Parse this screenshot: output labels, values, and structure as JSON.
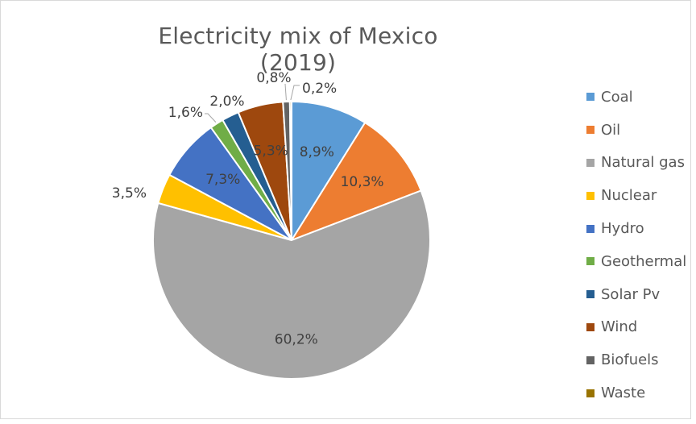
{
  "chart_data": {
    "type": "pie",
    "title": "Electricity mix of Mexico (2019)",
    "legend_position": "right",
    "slices": [
      {
        "name": "Coal",
        "value": 8.9,
        "label": "8,9%",
        "color": "#5B9BD5"
      },
      {
        "name": "Oil",
        "value": 10.3,
        "label": "10,3%",
        "color": "#ED7D31"
      },
      {
        "name": "Natural gas",
        "value": 60.2,
        "label": "60,2%",
        "color": "#A5A5A5"
      },
      {
        "name": "Nuclear",
        "value": 3.5,
        "label": "3,5%",
        "color": "#FFC000"
      },
      {
        "name": "Hydro",
        "value": 7.3,
        "label": "7,3%",
        "color": "#4472C4"
      },
      {
        "name": "Geothermal",
        "value": 1.6,
        "label": "1,6%",
        "color": "#70AD47"
      },
      {
        "name": "Solar Pv",
        "value": 2.0,
        "label": "2,0%",
        "color": "#255E91"
      },
      {
        "name": "Wind",
        "value": 5.3,
        "label": "5,3%",
        "color": "#9E480E"
      },
      {
        "name": "Biofuels",
        "value": 0.8,
        "label": "0,8%",
        "color": "#636363"
      },
      {
        "name": "Waste",
        "value": 0.2,
        "label": "0,2%",
        "color": "#997300"
      }
    ]
  }
}
